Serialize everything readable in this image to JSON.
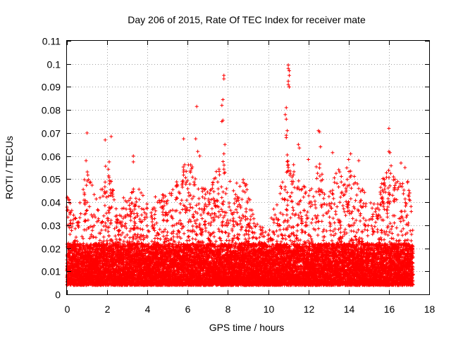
{
  "chart_data": {
    "type": "scatter",
    "title": "Day 206 of 2015, Rate Of TEC Index for receiver mate",
    "xlabel": "GPS time / hours",
    "ylabel": "ROTI / TECUs",
    "xlim": [
      0,
      18
    ],
    "ylim": [
      0,
      0.11
    ],
    "xticks": [
      0,
      2,
      4,
      6,
      8,
      10,
      12,
      14,
      16,
      18
    ],
    "xtick_labels": [
      "0",
      "2",
      "4",
      "6",
      "8",
      "10",
      "12",
      "14",
      "16",
      "18"
    ],
    "yticks": [
      0,
      0.01,
      0.02,
      0.03,
      0.04,
      0.05,
      0.06,
      0.07,
      0.08,
      0.09,
      0.1,
      0.11
    ],
    "ytick_labels": [
      "0",
      "0.01",
      "0.02",
      "0.03",
      "0.04",
      "0.05",
      "0.06",
      "0.07",
      "0.08",
      "0.09",
      "0.1",
      "0.11"
    ],
    "grid": true,
    "marker": "+",
    "color": "#ff0000",
    "series": [
      {
        "name": "ROTI",
        "x_range": [
          0.0,
          17.2
        ],
        "x_step": 0.005,
        "points_per_step": 4,
        "baseline_band": [
          0.004,
          0.022
        ],
        "typical_upper_envelope": [
          [
            0.0,
            0.044
          ],
          [
            0.5,
            0.035
          ],
          [
            1.0,
            0.055
          ],
          [
            1.5,
            0.045
          ],
          [
            2.0,
            0.058
          ],
          [
            2.5,
            0.04
          ],
          [
            3.0,
            0.045
          ],
          [
            3.5,
            0.047
          ],
          [
            4.0,
            0.04
          ],
          [
            4.5,
            0.045
          ],
          [
            5.0,
            0.043
          ],
          [
            5.5,
            0.05
          ],
          [
            6.0,
            0.06
          ],
          [
            6.5,
            0.05
          ],
          [
            7.0,
            0.045
          ],
          [
            7.5,
            0.055
          ],
          [
            7.8,
            0.062
          ],
          [
            8.2,
            0.05
          ],
          [
            8.8,
            0.052
          ],
          [
            9.5,
            0.03
          ],
          [
            10.0,
            0.028
          ],
          [
            10.5,
            0.045
          ],
          [
            11.0,
            0.06
          ],
          [
            11.5,
            0.055
          ],
          [
            12.0,
            0.045
          ],
          [
            12.5,
            0.06
          ],
          [
            13.0,
            0.045
          ],
          [
            13.5,
            0.055
          ],
          [
            14.0,
            0.056
          ],
          [
            14.5,
            0.05
          ],
          [
            15.0,
            0.04
          ],
          [
            15.5,
            0.045
          ],
          [
            16.0,
            0.058
          ],
          [
            16.5,
            0.05
          ],
          [
            17.0,
            0.05
          ],
          [
            17.2,
            0.03
          ]
        ],
        "outliers": [
          {
            "x": 1.0,
            "y": 0.07
          },
          {
            "x": 0.95,
            "y": 0.058
          },
          {
            "x": 1.9,
            "y": 0.067
          },
          {
            "x": 2.2,
            "y": 0.0685
          },
          {
            "x": 2.1,
            "y": 0.0575
          },
          {
            "x": 3.3,
            "y": 0.06
          },
          {
            "x": 3.3,
            "y": 0.0575
          },
          {
            "x": 5.8,
            "y": 0.0675
          },
          {
            "x": 6.4,
            "y": 0.0675
          },
          {
            "x": 6.45,
            "y": 0.0815
          },
          {
            "x": 6.5,
            "y": 0.062
          },
          {
            "x": 6.6,
            "y": 0.06
          },
          {
            "x": 7.7,
            "y": 0.075
          },
          {
            "x": 7.75,
            "y": 0.0755
          },
          {
            "x": 7.7,
            "y": 0.082
          },
          {
            "x": 7.75,
            "y": 0.0845
          },
          {
            "x": 7.8,
            "y": 0.0935
          },
          {
            "x": 7.8,
            "y": 0.095
          },
          {
            "x": 7.85,
            "y": 0.065
          },
          {
            "x": 7.8,
            "y": 0.061
          },
          {
            "x": 10.9,
            "y": 0.081
          },
          {
            "x": 10.85,
            "y": 0.078
          },
          {
            "x": 10.9,
            "y": 0.076
          },
          {
            "x": 10.95,
            "y": 0.071
          },
          {
            "x": 10.9,
            "y": 0.069
          },
          {
            "x": 10.9,
            "y": 0.068
          },
          {
            "x": 11.0,
            "y": 0.0995
          },
          {
            "x": 11.0,
            "y": 0.098
          },
          {
            "x": 11.05,
            "y": 0.097
          },
          {
            "x": 11.05,
            "y": 0.095
          },
          {
            "x": 11.0,
            "y": 0.0925
          },
          {
            "x": 11.0,
            "y": 0.091
          },
          {
            "x": 11.05,
            "y": 0.09
          },
          {
            "x": 10.95,
            "y": 0.0605
          },
          {
            "x": 11.5,
            "y": 0.065
          },
          {
            "x": 11.55,
            "y": 0.0635
          },
          {
            "x": 12.5,
            "y": 0.071
          },
          {
            "x": 12.55,
            "y": 0.0705
          },
          {
            "x": 12.6,
            "y": 0.064
          },
          {
            "x": 12.0,
            "y": 0.0585
          },
          {
            "x": 13.2,
            "y": 0.0615
          },
          {
            "x": 14.1,
            "y": 0.061
          },
          {
            "x": 14.5,
            "y": 0.058
          },
          {
            "x": 14.0,
            "y": 0.0585
          },
          {
            "x": 16.0,
            "y": 0.072
          },
          {
            "x": 16.0,
            "y": 0.062
          },
          {
            "x": 16.05,
            "y": 0.0615
          },
          {
            "x": 16.6,
            "y": 0.057
          },
          {
            "x": 16.8,
            "y": 0.055
          }
        ]
      }
    ]
  }
}
